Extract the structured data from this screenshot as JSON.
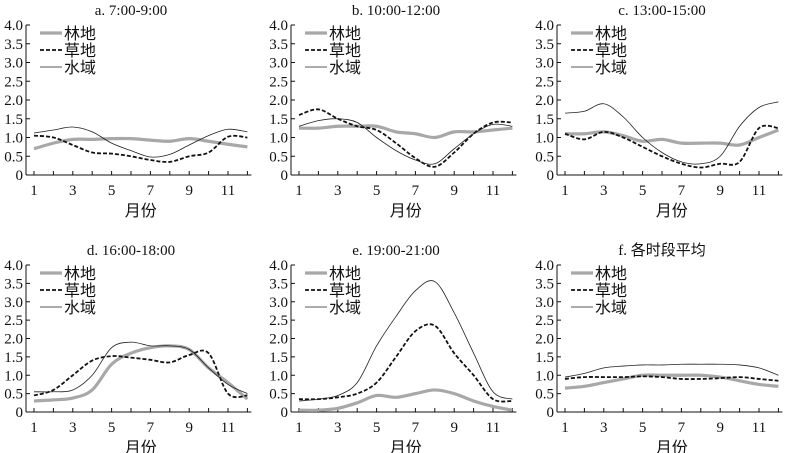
{
  "chart_data": [
    {
      "type": "line",
      "title": "a. 7:00-9:00",
      "xlabel": "月份",
      "ylabel": "",
      "ylim": [
        0,
        4
      ],
      "xticks": [
        "1",
        "3",
        "5",
        "7",
        "9",
        "11"
      ],
      "yticks": [
        "0",
        "0.5",
        "1.0",
        "1.5",
        "2.0",
        "2.5",
        "3.0",
        "3.5",
        "4.0"
      ],
      "x": [
        1,
        2,
        3,
        4,
        5,
        6,
        7,
        8,
        9,
        10,
        11,
        12
      ],
      "series": [
        {
          "name": "林地",
          "values": [
            0.7,
            0.85,
            0.95,
            0.95,
            0.97,
            0.97,
            0.93,
            0.9,
            0.97,
            0.9,
            0.82,
            0.75
          ]
        },
        {
          "name": "草地",
          "values": [
            1.05,
            1.0,
            0.8,
            0.6,
            0.57,
            0.5,
            0.4,
            0.35,
            0.5,
            0.6,
            1.02,
            1.0
          ]
        },
        {
          "name": "水域",
          "values": [
            1.12,
            1.2,
            1.28,
            1.15,
            0.85,
            0.65,
            0.48,
            0.55,
            0.8,
            1.05,
            1.22,
            1.15
          ]
        }
      ]
    },
    {
      "type": "line",
      "title": "b. 10:00-12:00",
      "xlabel": "月份",
      "ylabel": "",
      "ylim": [
        0,
        4
      ],
      "xticks": [
        "1",
        "3",
        "5",
        "7",
        "9",
        "11"
      ],
      "yticks": [
        "0",
        "0.5",
        "1.0",
        "1.5",
        "2.0",
        "2.5",
        "3.0",
        "3.5",
        "4.0"
      ],
      "x": [
        1,
        2,
        3,
        4,
        5,
        6,
        7,
        8,
        9,
        10,
        11,
        12
      ],
      "series": [
        {
          "name": "林地",
          "values": [
            1.25,
            1.25,
            1.3,
            1.3,
            1.3,
            1.15,
            1.1,
            1.0,
            1.15,
            1.15,
            1.2,
            1.25
          ]
        },
        {
          "name": "草地",
          "values": [
            1.6,
            1.75,
            1.5,
            1.3,
            1.2,
            0.85,
            0.45,
            0.22,
            0.6,
            1.1,
            1.4,
            1.4
          ]
        },
        {
          "name": "水域",
          "values": [
            1.3,
            1.45,
            1.5,
            1.4,
            1.0,
            0.65,
            0.4,
            0.3,
            0.7,
            1.1,
            1.35,
            1.3
          ]
        }
      ]
    },
    {
      "type": "line",
      "title": "c. 13:00-15:00",
      "xlabel": "月份",
      "ylabel": "",
      "ylim": [
        0,
        4
      ],
      "xticks": [
        "1",
        "3",
        "5",
        "7",
        "9",
        "11"
      ],
      "yticks": [
        "0",
        "0.5",
        "1.0",
        "1.5",
        "2.0",
        "2.5",
        "3.0",
        "3.5",
        "4.0"
      ],
      "x": [
        1,
        2,
        3,
        4,
        5,
        6,
        7,
        8,
        9,
        10,
        11,
        12
      ],
      "series": [
        {
          "name": "林地",
          "values": [
            1.1,
            1.1,
            1.15,
            1.05,
            0.9,
            0.95,
            0.85,
            0.85,
            0.85,
            0.8,
            1.0,
            1.2
          ]
        },
        {
          "name": "草地",
          "values": [
            1.1,
            0.95,
            1.15,
            1.0,
            0.75,
            0.5,
            0.3,
            0.2,
            0.3,
            0.35,
            1.25,
            1.25
          ]
        },
        {
          "name": "水域",
          "values": [
            1.65,
            1.7,
            1.9,
            1.55,
            1.0,
            0.6,
            0.35,
            0.3,
            0.5,
            1.3,
            1.8,
            1.95
          ]
        }
      ]
    },
    {
      "type": "line",
      "title": "d. 16:00-18:00",
      "xlabel": "月份",
      "ylabel": "",
      "ylim": [
        0,
        4
      ],
      "xticks": [
        "1",
        "3",
        "5",
        "7",
        "9",
        "11"
      ],
      "yticks": [
        "0",
        "0.5",
        "1.0",
        "1.5",
        "2.0",
        "2.5",
        "3.0",
        "3.5",
        "4.0"
      ],
      "x": [
        1,
        2,
        3,
        4,
        5,
        6,
        7,
        8,
        9,
        10,
        11,
        12
      ],
      "series": [
        {
          "name": "林地",
          "values": [
            0.3,
            0.33,
            0.38,
            0.6,
            1.3,
            1.6,
            1.75,
            1.8,
            1.7,
            1.2,
            0.8,
            0.35
          ]
        },
        {
          "name": "草地",
          "values": [
            0.45,
            0.6,
            1.0,
            1.4,
            1.52,
            1.48,
            1.42,
            1.35,
            1.55,
            1.6,
            0.5,
            0.45
          ]
        },
        {
          "name": "水域",
          "values": [
            0.55,
            0.55,
            0.6,
            1.0,
            1.75,
            1.9,
            1.8,
            1.8,
            1.7,
            1.2,
            0.75,
            0.5
          ]
        }
      ]
    },
    {
      "type": "line",
      "title": "e. 19:00-21:00",
      "xlabel": "月份",
      "ylabel": "",
      "ylim": [
        0,
        4
      ],
      "xticks": [
        "1",
        "3",
        "5",
        "7",
        "9",
        "11"
      ],
      "yticks": [
        "0",
        "0.5",
        "1.0",
        "1.5",
        "2.0",
        "2.5",
        "3.0",
        "3.5",
        "4.0"
      ],
      "x": [
        1,
        2,
        3,
        4,
        5,
        6,
        7,
        8,
        9,
        10,
        11,
        12
      ],
      "series": [
        {
          "name": "林地",
          "values": [
            0.05,
            0.05,
            0.1,
            0.25,
            0.45,
            0.4,
            0.5,
            0.6,
            0.5,
            0.3,
            0.15,
            0.05
          ]
        },
        {
          "name": "草地",
          "values": [
            0.35,
            0.35,
            0.4,
            0.5,
            0.8,
            1.5,
            2.2,
            2.35,
            1.6,
            1.0,
            0.35,
            0.3
          ]
        },
        {
          "name": "水域",
          "values": [
            0.3,
            0.35,
            0.45,
            0.8,
            1.8,
            2.6,
            3.3,
            3.55,
            2.7,
            1.6,
            0.55,
            0.35
          ]
        }
      ]
    },
    {
      "type": "line",
      "title": "f. 各时段平均",
      "xlabel": "月份",
      "ylabel": "",
      "ylim": [
        0,
        4
      ],
      "xticks": [
        "1",
        "3",
        "5",
        "7",
        "9",
        "11"
      ],
      "yticks": [
        "0",
        "0.5",
        "1.0",
        "1.5",
        "2.0",
        "2.5",
        "3.0",
        "3.5",
        "4.0"
      ],
      "x": [
        1,
        2,
        3,
        4,
        5,
        6,
        7,
        8,
        9,
        10,
        11,
        12
      ],
      "series": [
        {
          "name": "林地",
          "values": [
            0.65,
            0.7,
            0.8,
            0.9,
            1.0,
            1.0,
            1.0,
            1.0,
            0.95,
            0.85,
            0.75,
            0.7
          ]
        },
        {
          "name": "草地",
          "values": [
            0.9,
            0.95,
            0.95,
            0.95,
            0.97,
            0.95,
            0.9,
            0.9,
            0.92,
            0.95,
            0.9,
            0.85
          ]
        },
        {
          "name": "水域",
          "values": [
            0.95,
            1.05,
            1.2,
            1.25,
            1.28,
            1.28,
            1.3,
            1.3,
            1.3,
            1.28,
            1.2,
            1.0
          ]
        }
      ]
    }
  ],
  "legend_placement": "top-left",
  "series_styles": [
    {
      "color": "#a8a8a8"
    },
    {
      "color": "#111111"
    },
    {
      "color": "#222222"
    }
  ]
}
